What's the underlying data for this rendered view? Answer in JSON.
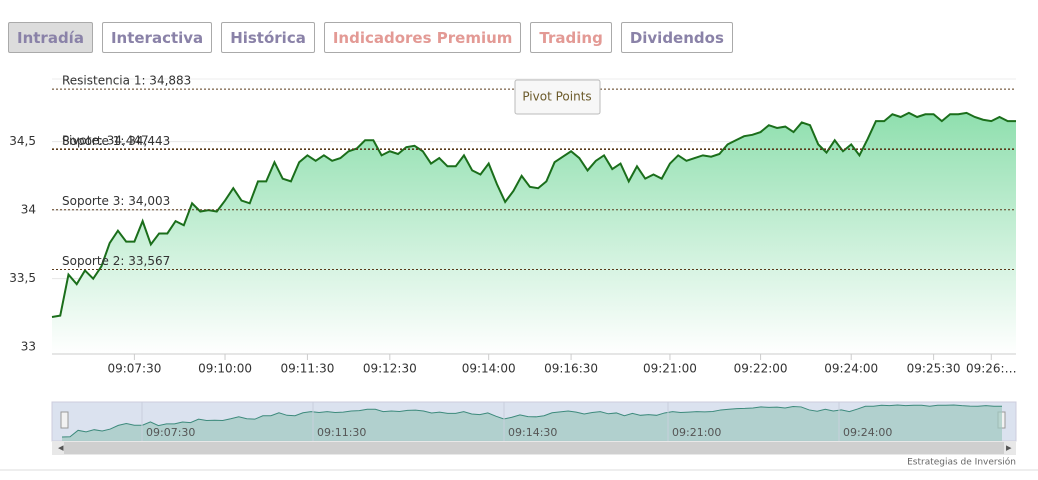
{
  "tabs": [
    "Intradía",
    "Interactiva",
    "Histórica",
    "Indicadores Premium",
    "Trading",
    "Dividendos"
  ],
  "tooltip": "Pivot Points",
  "credit": "Estrategias de Inversión",
  "navigator": {
    "labels": [
      "09:07:30",
      "09:11:30",
      "09:14:30",
      "09:21:00",
      "09:24:00"
    ]
  },
  "chart_data": {
    "type": "area",
    "categories": [
      null,
      null,
      null,
      null,
      null,
      null,
      null,
      null,
      null,
      null,
      "09:07:30",
      null,
      null,
      null,
      null,
      null,
      null,
      null,
      null,
      null,
      null,
      "09:10:00",
      null,
      null,
      null,
      null,
      null,
      null,
      null,
      null,
      null,
      "09:11:30",
      null,
      null,
      null,
      null,
      null,
      null,
      null,
      null,
      null,
      "09:12:30",
      null,
      null,
      null,
      null,
      null,
      null,
      null,
      null,
      null,
      null,
      null,
      "09:14:00",
      null,
      null,
      null,
      null,
      null,
      null,
      null,
      null,
      null,
      "09:16:30",
      null,
      null,
      null,
      null,
      null,
      null,
      null,
      null,
      null,
      null,
      null,
      "09:21:00",
      null,
      null,
      null,
      null,
      null,
      null,
      null,
      null,
      null,
      null,
      "09:22:00",
      null,
      null,
      null,
      null,
      null,
      null,
      null,
      null,
      null,
      null,
      "09:24:00",
      null,
      null,
      null,
      null,
      null,
      null,
      null,
      null,
      null,
      "09:25:30",
      null,
      null,
      null,
      null,
      null,
      null,
      "09:26:…",
      null,
      null,
      null
    ],
    "series": [
      {
        "color": "#1b6e1b",
        "values": [
          33.22,
          33.23,
          33.53,
          33.46,
          33.56,
          33.5,
          33.59,
          33.76,
          33.85,
          33.77,
          33.77,
          33.92,
          33.75,
          33.83,
          33.83,
          33.92,
          33.89,
          34.05,
          33.99,
          34.0,
          33.99,
          34.07,
          34.16,
          34.07,
          34.05,
          34.21,
          34.21,
          34.35,
          34.23,
          34.21,
          34.35,
          34.4,
          34.36,
          34.4,
          34.36,
          34.38,
          34.43,
          34.45,
          34.51,
          34.51,
          34.4,
          34.43,
          34.41,
          34.46,
          34.47,
          34.43,
          34.34,
          34.38,
          34.32,
          34.32,
          34.4,
          34.29,
          34.26,
          34.34,
          34.19,
          34.06,
          34.14,
          34.25,
          34.17,
          34.16,
          34.21,
          34.35,
          34.39,
          34.43,
          34.38,
          34.29,
          34.36,
          34.4,
          34.3,
          34.34,
          34.21,
          34.32,
          34.23,
          34.26,
          34.23,
          34.34,
          34.4,
          34.36,
          34.38,
          34.4,
          34.39,
          34.41,
          34.48,
          34.51,
          34.54,
          34.55,
          34.57,
          34.62,
          34.6,
          34.61,
          34.57,
          34.64,
          34.62,
          34.48,
          34.42,
          34.51,
          34.43,
          34.48,
          34.4,
          34.52,
          34.65,
          34.65,
          34.7,
          34.68,
          34.71,
          34.68,
          34.7,
          34.7,
          34.65,
          34.7,
          34.7,
          34.71,
          34.68,
          34.66,
          34.65,
          34.68,
          34.65,
          34.65
        ]
      }
    ],
    "ylim": [
      32.95,
      34.95
    ],
    "yticks": [
      33,
      {
        "value": 33.5,
        "label": "33,5"
      },
      34,
      {
        "value": 34.5,
        "label": "34,5"
      }
    ],
    "grid": true,
    "pivot_lines": [
      {
        "label": "Resistencia 1: 34,883",
        "value": 34.883
      },
      {
        "label": "Pivote: 34,447",
        "value": 34.447
      },
      {
        "label": "Soporte 1: 34,443",
        "value": 34.443
      },
      {
        "label": "Soporte 3: 34,003",
        "value": 34.003
      },
      {
        "label": "Soporte 2: 33,567",
        "value": 33.567
      }
    ]
  }
}
